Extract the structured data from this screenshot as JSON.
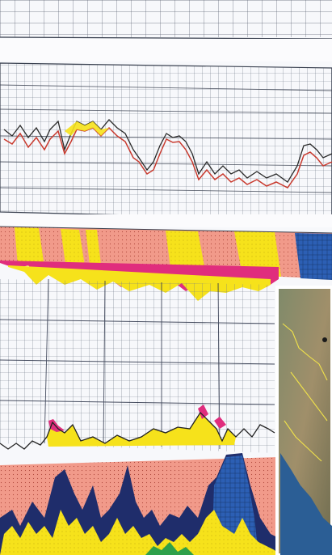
{
  "image": {
    "subject": "",
    "caption": ""
  },
  "colors": {
    "paper": "#f7f8fb",
    "grid_line": "#3a4150",
    "grid_light": "#8d97a8",
    "salmon_band": "#f19a8a",
    "yellow": "#f6e21b",
    "magenta": "#e02d7d",
    "navy": "#1f2d6b",
    "blue": "#2c5fb4",
    "red_trace": "#c93a2e",
    "green": "#2ea04a",
    "map_land": "#9c8b66",
    "map_sea": "#2b5e95",
    "map_border": "#f0e24a"
  },
  "icons": {
    "map": "satellite-map-icon"
  }
}
